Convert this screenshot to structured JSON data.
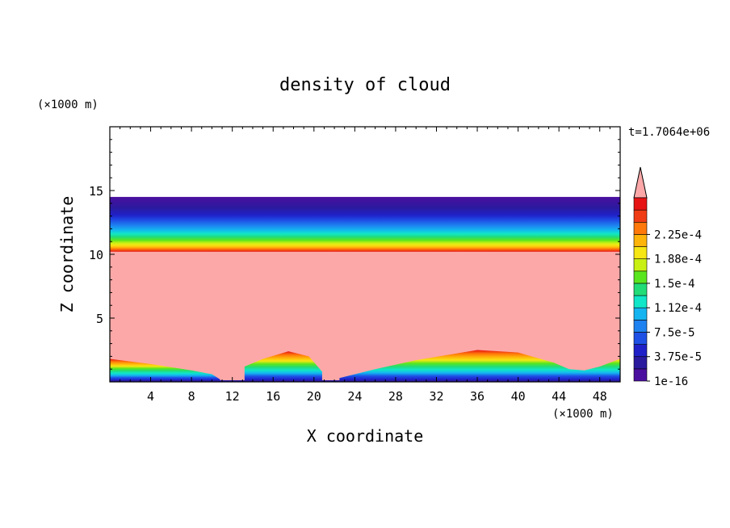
{
  "chart_data": {
    "type": "heatmap",
    "title": "density of cloud",
    "xlabel": "X coordinate",
    "ylabel": "Z coordinate",
    "x_unit": "(×1000 m)",
    "y_unit": "(×1000 m)",
    "time_label": "t=1.7064e+06",
    "xlim": [
      0,
      50
    ],
    "ylim": [
      0,
      20
    ],
    "x_ticks": [
      4,
      8,
      12,
      16,
      20,
      24,
      28,
      32,
      36,
      40,
      44,
      48
    ],
    "y_ticks": [
      5,
      10,
      15
    ],
    "colorbar": {
      "levels": [
        1e-16,
        1.875e-05,
        3.75e-05,
        5.625e-05,
        7.5e-05,
        9.375e-05,
        0.0001125,
        0.00013125,
        0.00015,
        0.00016875,
        0.0001875,
        0.00020625,
        0.000225,
        0.00024375
      ],
      "labels": [
        "1e-16",
        "3.75e-5",
        "7.5e-5",
        "1.12e-4",
        "1.5e-4",
        "1.88e-4",
        "2.25e-4"
      ],
      "colors": [
        "#4b0fa0",
        "#2a1a9e",
        "#2020c8",
        "#1e50e6",
        "#1e82f0",
        "#14b4f0",
        "#10e6c8",
        "#22dc78",
        "#5ae61e",
        "#c8f014",
        "#f5e614",
        "#ffb40a",
        "#ff780a",
        "#f03c14",
        "#e61414"
      ],
      "over_color": "#fca8a8"
    },
    "fields": {
      "upper_layer": {
        "bottom_km": 10.2,
        "top_km": 14.5
      },
      "surface_bands": [
        {
          "x": [
            0,
            4,
            8,
            10,
            10.8
          ],
          "z": [
            1.8,
            1.4,
            0.9,
            0.6,
            0.2
          ]
        },
        {
          "x": [
            13.2,
            15,
            17.5,
            19.5,
            20.8
          ],
          "z": [
            1.2,
            1.8,
            2.4,
            2.0,
            0.8
          ]
        },
        {
          "x": [
            22.5,
            26,
            30,
            36,
            40,
            43.5,
            45,
            46.5,
            48,
            50
          ],
          "z": [
            0.3,
            1.0,
            1.7,
            2.5,
            2.3,
            1.5,
            1.0,
            0.9,
            1.2,
            1.8
          ]
        }
      ]
    }
  }
}
